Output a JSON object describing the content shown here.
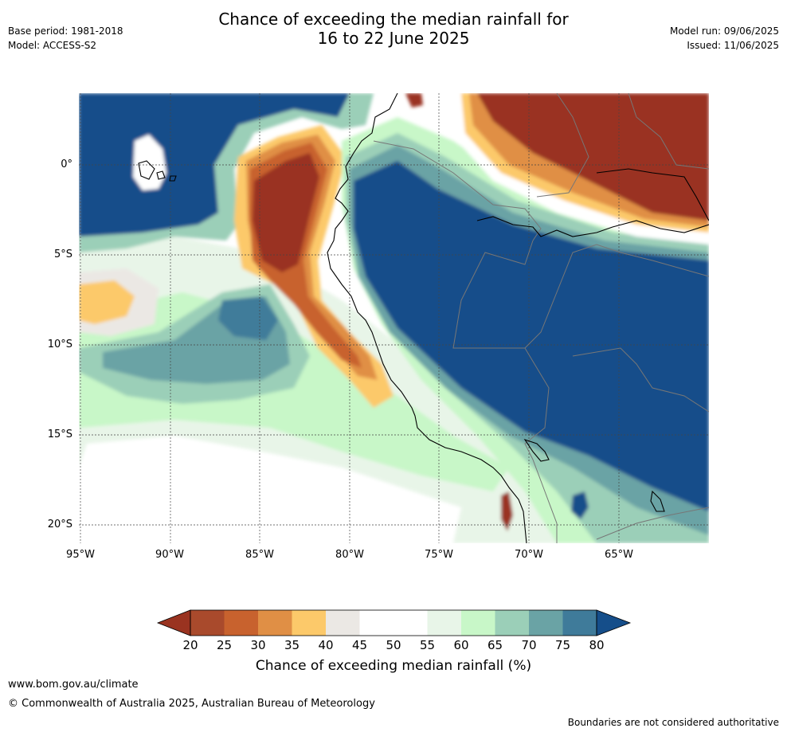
{
  "header": {
    "base_period": "Base period: 1981-2018",
    "model": "Model: ACCESS-S2",
    "title_line1": "Chance of exceeding the median rainfall for",
    "title_line2": "16 to 22 June 2025",
    "model_run": "Model run: 09/06/2025",
    "issued": "Issued: 11/06/2025"
  },
  "map": {
    "lat_labels": [
      "0°",
      "5°S",
      "10°S",
      "15°S",
      "20°S"
    ],
    "lon_labels": [
      "95°W",
      "90°W",
      "85°W",
      "80°W",
      "75°W",
      "70°W",
      "65°W"
    ],
    "colors": {
      "very_dry": "#9a3320",
      "dry": "#c8622e",
      "moderately_dry": "#e08f45",
      "slightly_dry": "#fcc96a",
      "neutral_grey": "#ebe8e4",
      "neutral": "#ffffff",
      "slightly_wet": "#e8f5e8",
      "light_green": "#c8f7c8",
      "moderately_wet": "#9bcfb8",
      "wet": "#6aa3a5",
      "very_wet": "#3f7b9a",
      "extremely_wet": "#154e8a"
    }
  },
  "colorbar": {
    "ticks": [
      "20",
      "25",
      "30",
      "35",
      "40",
      "45",
      "50",
      "55",
      "60",
      "65",
      "70",
      "75",
      "80"
    ],
    "bin_colors": [
      "#a94a2c",
      "#c8622e",
      "#e08f45",
      "#fcc96a",
      "#ebe8e4",
      "#ffffff",
      "#ffffff",
      "#e8f5e8",
      "#c8f7c8",
      "#9bcfb8",
      "#6aa3a5",
      "#3f7b9a"
    ],
    "low_extend_color": "#9a3320",
    "high_extend_color": "#154e8a",
    "label": "Chance of exceeding median rainfall (%)"
  },
  "footer": {
    "url": "www.bom.gov.au/climate",
    "copyright": "© Commonwealth of Australia 2025, Australian Bureau of Meteorology",
    "disclaimer": "Boundaries are not considered authoritative"
  }
}
